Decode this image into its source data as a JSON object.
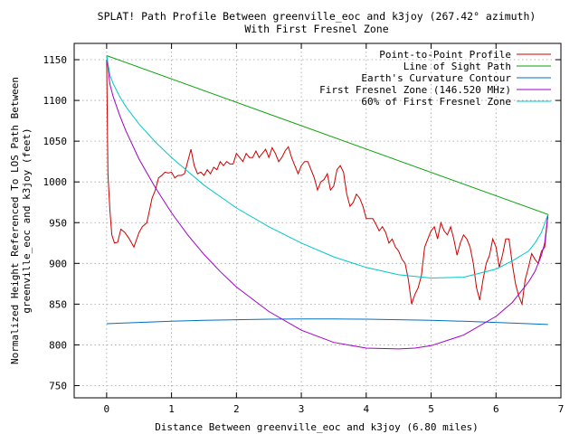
{
  "chart_data": {
    "type": "line",
    "title_line1": "SPLAT! Path Profile Between greenville_eoc and k3joy (267.42° azimuth)",
    "title_line2": "With First Fresnel Zone",
    "xlabel": "Distance Between greenville_eoc and k3joy (6.80 miles)",
    "ylabel_line1": "Normalized Height Referenced To LOS Path Between",
    "ylabel_line2": "greenville_eoc and k3joy (feet)",
    "xlim": [
      -0.5,
      7
    ],
    "ylim": [
      735,
      1170
    ],
    "x_ticks": [
      0,
      1,
      2,
      3,
      4,
      5,
      6,
      7
    ],
    "x_tick_labels": [
      "0",
      "1",
      "2",
      "3",
      "4",
      "5",
      "6",
      "7"
    ],
    "y_ticks": [
      750,
      800,
      850,
      900,
      950,
      1000,
      1050,
      1100,
      1150
    ],
    "y_tick_labels": [
      "750",
      "800",
      "850",
      "900",
      "950",
      "1000",
      "1050",
      "1100",
      "1150"
    ],
    "grid": true,
    "legend_position": "top-right",
    "series": [
      {
        "name": "Point-to-Point Profile",
        "color": "#cc0000",
        "x": [
          0,
          0.02,
          0.05,
          0.08,
          0.12,
          0.17,
          0.22,
          0.28,
          0.35,
          0.42,
          0.5,
          0.55,
          0.62,
          0.7,
          0.75,
          0.8,
          0.85,
          0.9,
          0.95,
          1.0,
          1.05,
          1.1,
          1.15,
          1.2,
          1.3,
          1.35,
          1.4,
          1.45,
          1.5,
          1.55,
          1.6,
          1.65,
          1.7,
          1.75,
          1.8,
          1.85,
          1.9,
          1.95,
          2.0,
          2.05,
          2.1,
          2.15,
          2.2,
          2.25,
          2.3,
          2.35,
          2.4,
          2.45,
          2.5,
          2.55,
          2.6,
          2.65,
          2.7,
          2.75,
          2.8,
          2.85,
          2.9,
          2.95,
          3.0,
          3.05,
          3.1,
          3.15,
          3.2,
          3.25,
          3.3,
          3.35,
          3.4,
          3.45,
          3.5,
          3.55,
          3.6,
          3.65,
          3.7,
          3.75,
          3.8,
          3.85,
          3.9,
          3.95,
          4.0,
          4.05,
          4.1,
          4.15,
          4.2,
          4.25,
          4.3,
          4.35,
          4.4,
          4.45,
          4.5,
          4.55,
          4.6,
          4.65,
          4.7,
          4.75,
          4.8,
          4.85,
          4.9,
          4.95,
          5.0,
          5.05,
          5.1,
          5.15,
          5.2,
          5.25,
          5.3,
          5.35,
          5.4,
          5.45,
          5.5,
          5.55,
          5.6,
          5.65,
          5.7,
          5.75,
          5.8,
          5.85,
          5.9,
          5.95,
          6.0,
          6.05,
          6.1,
          6.15,
          6.2,
          6.25,
          6.3,
          6.35,
          6.4,
          6.45,
          6.5,
          6.55,
          6.6,
          6.65,
          6.7,
          6.75,
          6.8
        ],
        "y": [
          1150,
          1010,
          965,
          935,
          925,
          926,
          942,
          938,
          930,
          920,
          938,
          945,
          950,
          980,
          990,
          1005,
          1008,
          1012,
          1011,
          1012,
          1005,
          1008,
          1008,
          1010,
          1040,
          1020,
          1010,
          1012,
          1008,
          1015,
          1010,
          1018,
          1015,
          1025,
          1020,
          1025,
          1022,
          1022,
          1035,
          1030,
          1025,
          1035,
          1030,
          1030,
          1038,
          1030,
          1035,
          1040,
          1030,
          1042,
          1035,
          1025,
          1030,
          1038,
          1043,
          1030,
          1020,
          1010,
          1020,
          1025,
          1025,
          1015,
          1005,
          990,
          1000,
          1003,
          1010,
          990,
          995,
          1015,
          1020,
          1012,
          985,
          970,
          975,
          985,
          980,
          970,
          955,
          955,
          955,
          948,
          940,
          945,
          938,
          925,
          930,
          920,
          915,
          905,
          900,
          880,
          850,
          862,
          870,
          885,
          920,
          930,
          940,
          945,
          930,
          950,
          940,
          935,
          945,
          930,
          910,
          925,
          935,
          930,
          920,
          900,
          870,
          855,
          880,
          900,
          910,
          930,
          920,
          895,
          910,
          930,
          930,
          900,
          875,
          860,
          850,
          880,
          895,
          912,
          905,
          900,
          915,
          920,
          960
        ]
      },
      {
        "name": "Line of Sight Path",
        "color": "#00a000",
        "x": [
          0,
          6.8
        ],
        "y": [
          1155,
          960
        ]
      },
      {
        "name": "Earth's Curvature Contour",
        "color": "#0070c0",
        "x": [
          0,
          0.5,
          1,
          1.5,
          2,
          2.5,
          3,
          3.5,
          4,
          4.5,
          5,
          5.5,
          6,
          6.5,
          6.8
        ],
        "y": [
          826,
          827.6,
          829,
          830.1,
          830.9,
          831.5,
          831.8,
          831.8,
          831.5,
          830.9,
          830.1,
          829,
          827.6,
          826,
          825
        ]
      },
      {
        "name": "First Fresnel Zone (146.520 MHz)",
        "color": "#a000c8",
        "x": [
          0,
          0.05,
          0.1,
          0.2,
          0.3,
          0.5,
          0.75,
          1,
          1.25,
          1.5,
          1.75,
          2,
          2.5,
          3,
          3.5,
          4,
          4.5,
          4.75,
          5,
          5.5,
          6,
          6.25,
          6.5,
          6.6,
          6.7,
          6.75,
          6.8
        ],
        "y": [
          1155,
          1120,
          1105,
          1082,
          1062,
          1028,
          993,
          962,
          935,
          911,
          890,
          871,
          841,
          818,
          803,
          796,
          795,
          796,
          799,
          812,
          835,
          852,
          877,
          890,
          910,
          925,
          960
        ]
      },
      {
        "name": "60% of First Fresnel Zone",
        "color": "#00c8c8",
        "x": [
          0,
          0.05,
          0.1,
          0.2,
          0.3,
          0.5,
          0.75,
          1,
          1.5,
          2,
          2.5,
          3,
          3.5,
          4,
          4.5,
          5,
          5.5,
          6,
          6.25,
          6.5,
          6.6,
          6.7,
          6.8
        ],
        "y": [
          1155,
          1131,
          1121,
          1105,
          1092,
          1071,
          1049,
          1030,
          996,
          968,
          945,
          925,
          908,
          895,
          886,
          882,
          883,
          893,
          903,
          915,
          925,
          938,
          960
        ]
      }
    ]
  }
}
